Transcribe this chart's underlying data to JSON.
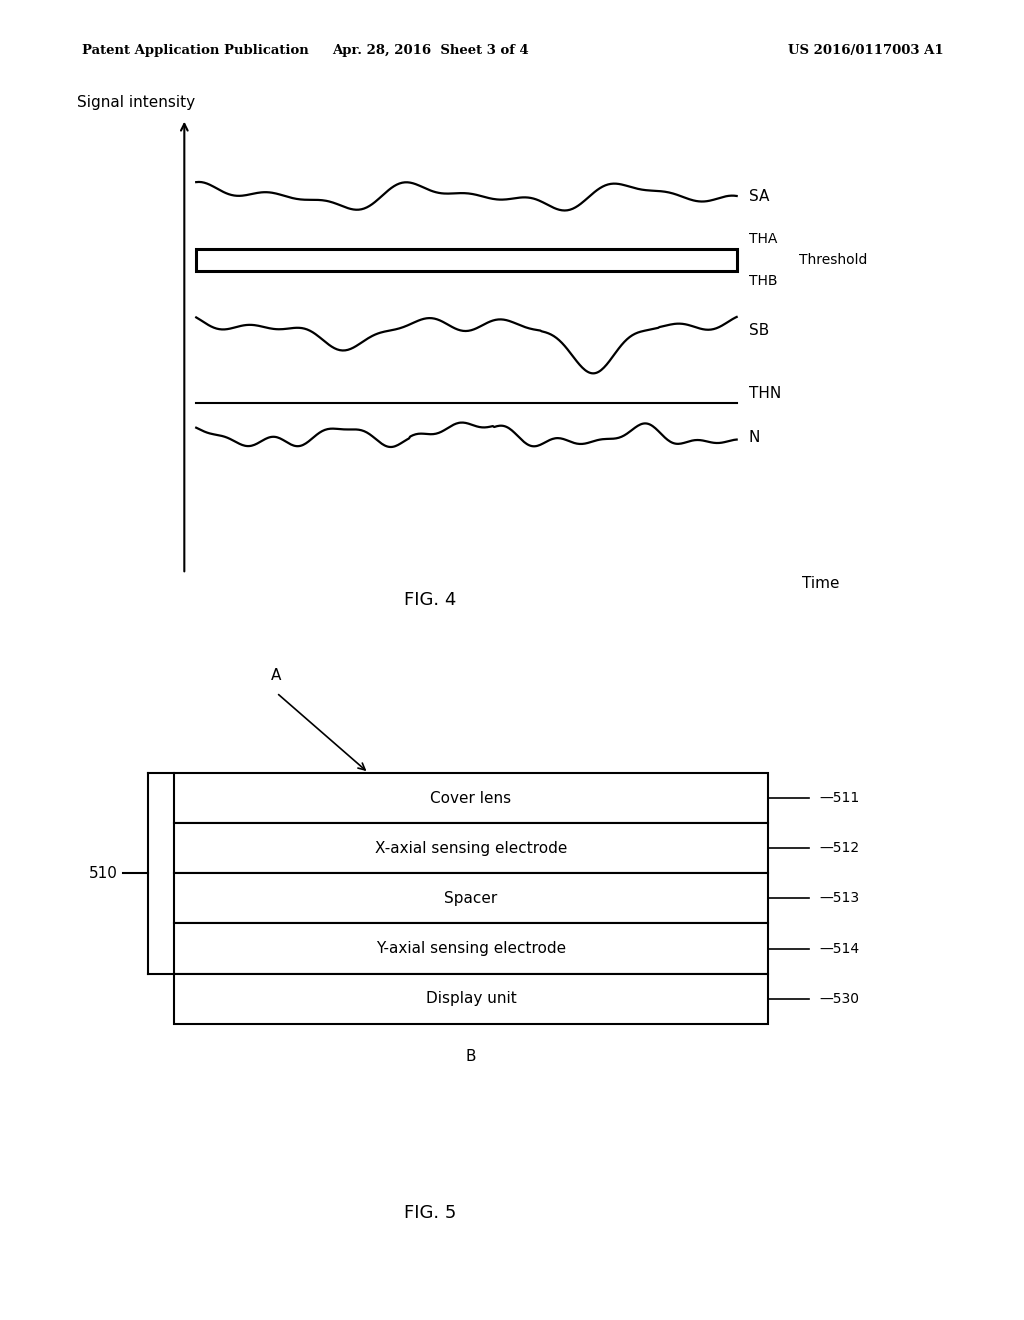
{
  "header_left": "Patent Application Publication",
  "header_center": "Apr. 28, 2016  Sheet 3 of 4",
  "header_right": "US 2016/0117003 A1",
  "fig4_title": "FIG. 4",
  "fig5_title": "FIG. 5",
  "ylabel": "Signal intensity",
  "xlabel": "Time",
  "SA_label": "SA",
  "THA_label": "THA",
  "THB_label": "THB",
  "SB_label": "SB",
  "THN_label": "THN",
  "N_label": "N",
  "threshold_label": "Threshold",
  "fig5_layers": [
    {
      "label": "Cover lens",
      "tag": "511"
    },
    {
      "label": "X-axial sensing electrode",
      "tag": "512"
    },
    {
      "label": "Spacer",
      "tag": "513"
    },
    {
      "label": "Y-axial sensing electrode",
      "tag": "514"
    },
    {
      "label": "Display unit",
      "tag": "530"
    }
  ],
  "fig5_group_label": "510",
  "fig5_A_label": "A",
  "fig5_B_label": "B",
  "bg_color": "#ffffff",
  "line_color": "#000000"
}
